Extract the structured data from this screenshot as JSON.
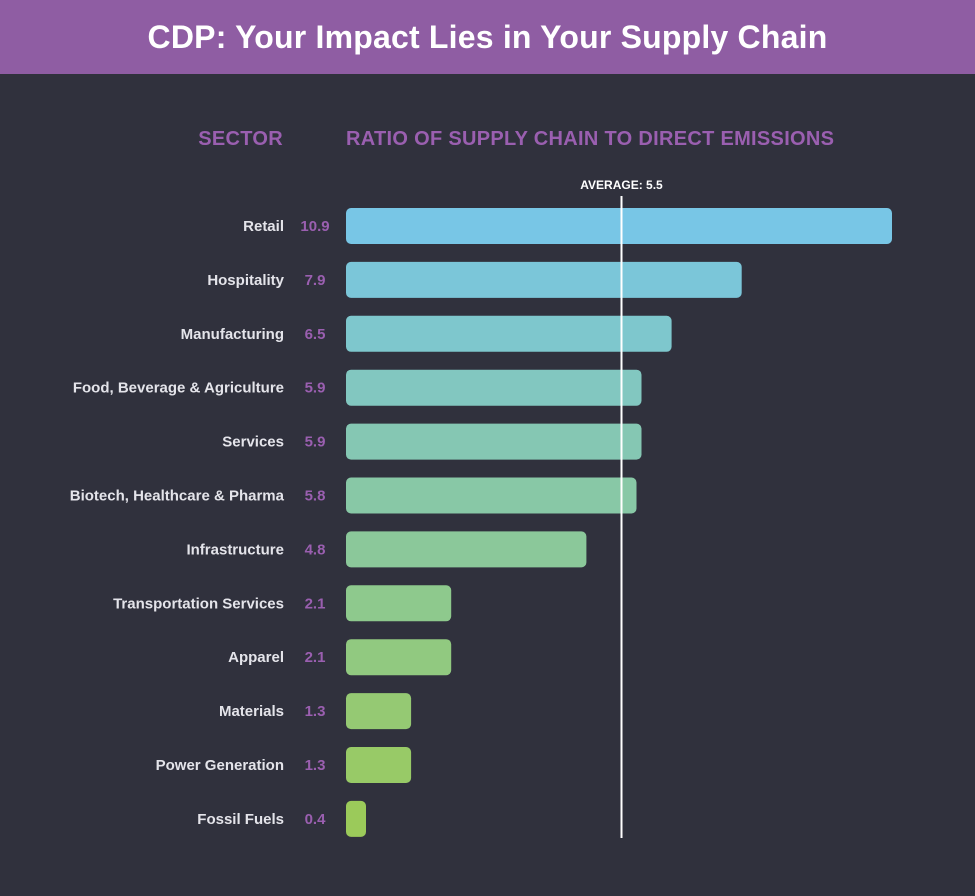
{
  "header": {
    "title": "CDP: Your Impact Lies in Your Supply Chain"
  },
  "colors": {
    "header_bg": "#8f5da3",
    "background": "#30313d",
    "accent_purple": "#9a5fb0",
    "bar_gradient": [
      "#78c6e6",
      "#9bca5a"
    ]
  },
  "chart_data": {
    "type": "bar",
    "orientation": "horizontal",
    "ylabel": "SECTOR",
    "xlabel": "RATIO OF SUPPLY CHAIN TO DIRECT EMISSIONS",
    "categories": [
      "Retail",
      "Hospitality",
      "Manufacturing",
      "Food, Beverage & Agriculture",
      "Services",
      "Biotech, Healthcare & Pharma",
      "Infrastructure",
      "Transportation Services",
      "Apparel",
      "Materials",
      "Power Generation",
      "Fossil Fuels"
    ],
    "values": [
      10.9,
      7.9,
      6.5,
      5.9,
      5.9,
      5.8,
      4.8,
      2.1,
      2.1,
      1.3,
      1.3,
      0.4
    ],
    "value_labels": [
      "10.9",
      "7.9",
      "6.5",
      "5.9",
      "5.9",
      "5.8",
      "4.8",
      "2.1",
      "2.1",
      "1.3",
      "1.3",
      "0.4"
    ],
    "xlim": [
      0,
      11
    ],
    "reference_line": {
      "value": 5.5,
      "label": "AVERAGE: 5.5"
    },
    "grid": false
  }
}
